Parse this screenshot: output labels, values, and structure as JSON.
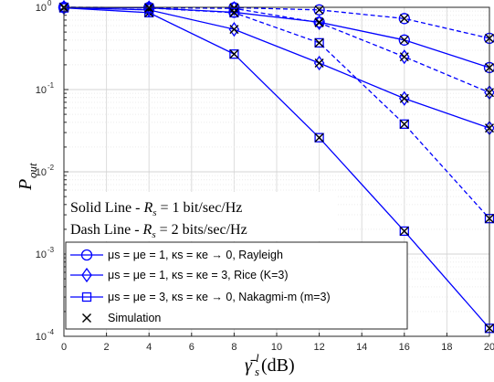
{
  "chart_data": {
    "type": "line",
    "title": "",
    "xlabel": "γ̄",
    "xlabel_sup": "l",
    "xlabel_sub": "s",
    "xlabel_unit": " (dB)",
    "ylabel": "P",
    "ylabel_sub": "out",
    "xlim": [
      0,
      20
    ],
    "ylim": [
      0.0001,
      1
    ],
    "yscale": "log",
    "grid": true,
    "x_ticks": [
      "0",
      "2",
      "4",
      "6",
      "8",
      "10",
      "12",
      "14",
      "16",
      "18",
      "20"
    ],
    "y_ticks": [
      {
        "base": "10",
        "exp": "-4",
        "value": 0.0001
      },
      {
        "base": "10",
        "exp": "-3",
        "value": 0.001
      },
      {
        "base": "10",
        "exp": "-2",
        "value": 0.01
      },
      {
        "base": "10",
        "exp": "-1",
        "value": 0.1
      },
      {
        "base": "10",
        "exp": "0",
        "value": 1
      }
    ],
    "x": [
      0,
      4,
      8,
      12,
      16,
      20
    ],
    "color": "#0000ff",
    "series": [
      {
        "marker": "circle",
        "linestyle": "solid",
        "values": [
          0.999,
          0.985,
          0.87,
          0.66,
          0.4,
          0.185
        ]
      },
      {
        "marker": "diamond",
        "linestyle": "solid",
        "values": [
          0.99,
          0.93,
          0.54,
          0.21,
          0.078,
          0.034
        ]
      },
      {
        "marker": "square",
        "linestyle": "solid",
        "values": [
          0.985,
          0.86,
          0.27,
          0.026,
          0.0019,
          0.000125
        ]
      },
      {
        "marker": "circle",
        "linestyle": "dashed",
        "values": [
          1.0,
          0.995,
          0.99,
          0.93,
          0.73,
          0.42
        ]
      },
      {
        "marker": "diamond",
        "linestyle": "dashed",
        "values": [
          1.0,
          0.99,
          0.97,
          0.65,
          0.25,
          0.092
        ]
      },
      {
        "marker": "square",
        "linestyle": "dashed",
        "values": [
          1.0,
          0.98,
          0.86,
          0.37,
          0.038,
          0.0027
        ]
      }
    ],
    "simulation_marker": "x",
    "simulation_color": "#000000",
    "annotations": [
      {
        "prefix": "Solid Line - ",
        "var": "R",
        "sub": "s",
        "rest": " = 1 bit/sec/Hz"
      },
      {
        "prefix": "Dash Line - ",
        "var": "R",
        "sub": "s",
        "rest": " = 2 bits/sec/Hz"
      }
    ],
    "legend_position": "lower-left",
    "legend": [
      {
        "marker": "circle",
        "text": "μs = μe = 1, κs = κe → 0, Rayleigh"
      },
      {
        "marker": "diamond",
        "text": "μs = μe = 1, κs = κe = 3,  Rice (K=3)"
      },
      {
        "marker": "square",
        "text": "μs = μe = 3, κs = κe → 0, Nakagmi-m (m=3)"
      },
      {
        "marker": "x",
        "text": "Simulation"
      }
    ]
  }
}
